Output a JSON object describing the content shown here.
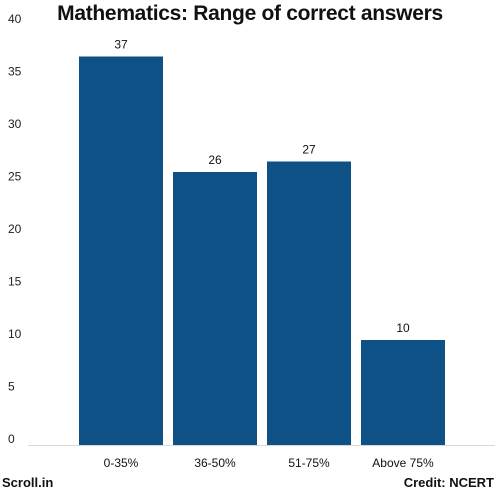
{
  "chart_data": {
    "type": "bar",
    "title": "Mathematics: Range of correct answers",
    "categories": [
      "0-35%",
      "36-50%",
      "51-75%",
      "Above 75%"
    ],
    "values": [
      37,
      26,
      27,
      10
    ],
    "ylim": [
      0,
      40
    ],
    "yticks": [
      0,
      5,
      10,
      15,
      20,
      25,
      30,
      35,
      40
    ],
    "xlabel": "",
    "ylabel": "",
    "grid": false,
    "bar_color": "#0e5186"
  },
  "footer": {
    "source": "Scroll.in",
    "credit": "Credit: NCERT"
  }
}
